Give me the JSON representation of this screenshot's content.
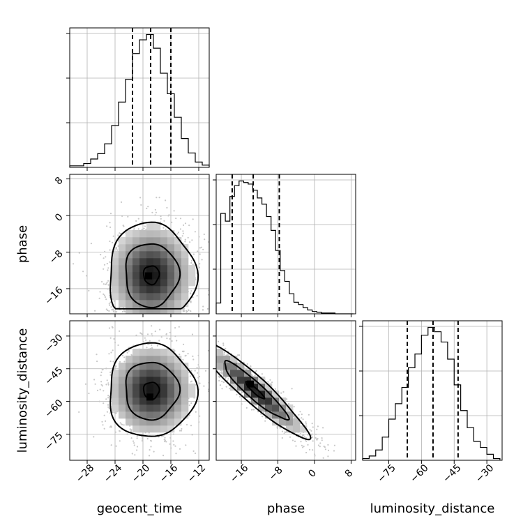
{
  "chart_data": {
    "type": "scatter",
    "title": "",
    "parameters": [
      "geocent_time",
      "phase",
      "luminosity_distance"
    ],
    "axis_labels": {
      "x": [
        "geocent_time",
        "phase",
        "luminosity_distance"
      ],
      "y": [
        "phase",
        "luminosity_distance"
      ]
    },
    "ranges": {
      "geocent_time": [
        -30.5,
        -10.5
      ],
      "phase": [
        -21.5,
        9
      ],
      "luminosity_distance": [
        -87,
        -23
      ]
    },
    "ticks": {
      "geocent_time": [
        -28,
        -24,
        -20,
        -16,
        -12
      ],
      "phase": [
        -16,
        -8,
        0,
        8
      ],
      "luminosity_distance": [
        -75,
        -60,
        -45,
        -30
      ]
    },
    "grid": true,
    "marginals": {
      "geocent_time": {
        "bin_edges": [
          -30.5,
          -29.5,
          -28.5,
          -27.5,
          -26.5,
          -25.5,
          -24.5,
          -23.5,
          -22.5,
          -21.5,
          -20.5,
          -19.5,
          -18.5,
          -17.5,
          -16.5,
          -15.5,
          -14.5,
          -13.5,
          -12.5,
          -11.5,
          -10.5
        ],
        "counts": [
          2,
          2,
          5,
          11,
          18,
          31,
          55,
          86,
          116,
          150,
          168,
          175,
          157,
          124,
          97,
          66,
          38,
          19,
          7,
          3
        ],
        "quantiles": [
          -21.5,
          -18.9,
          -16.0
        ]
      },
      "phase": {
        "bin_edges": [
          -21.5,
          -20.5,
          -19.5,
          -18.5,
          -17.5,
          -16.5,
          -15.5,
          -14.5,
          -13.5,
          -12.5,
          -11.5,
          -10.5,
          -9.5,
          -8.5,
          -7.5,
          -6.5,
          -5.5,
          -4.5,
          -3.5,
          -2.5,
          -1.5,
          -0.5,
          0.5,
          1.5,
          2.5,
          3.5,
          4.5,
          5.5,
          6.5,
          7.5,
          8.5
        ],
        "counts": [
          14,
          130,
          120,
          152,
          166,
          172,
          170,
          168,
          160,
          150,
          142,
          126,
          108,
          82,
          56,
          42,
          26,
          15,
          12,
          8,
          5,
          3,
          2,
          1,
          1,
          1,
          0,
          0,
          0,
          0
        ],
        "quantiles": [
          -18.0,
          -13.4,
          -7.7
        ]
      },
      "luminosity_distance": {
        "bin_edges": [
          -87,
          -84,
          -81,
          -78,
          -75,
          -72,
          -69,
          -66,
          -63,
          -60,
          -57,
          -54,
          -51,
          -48,
          -45,
          -42,
          -39,
          -36,
          -33,
          -30,
          -27,
          -24
        ],
        "counts": [
          2,
          5,
          12,
          27,
          48,
          66,
          85,
          108,
          124,
          146,
          155,
          150,
          138,
          118,
          88,
          58,
          38,
          22,
          15,
          7,
          2
        ],
        "quantiles": [
          -66.5,
          -54.7,
          -43.2
        ]
      }
    },
    "pairs": [
      {
        "x": "geocent_time",
        "y": "phase",
        "mean": [
          -18.8,
          -13.0
        ],
        "sd": [
          3.2,
          5.8
        ],
        "corr": 0.0,
        "bounds_y": [
          -21.2,
          9
        ],
        "density_peak": [
          -19.2,
          -13.2
        ],
        "contour_levels": [
          "inner",
          "middle",
          "outer"
        ]
      },
      {
        "x": "geocent_time",
        "y": "luminosity_distance",
        "mean": [
          -18.8,
          -55.0
        ],
        "sd": [
          3.2,
          11.0
        ],
        "corr": 0.0,
        "density_peak": [
          -19.0,
          -58.0
        ],
        "contour_levels": [
          "inner",
          "middle",
          "outer"
        ]
      },
      {
        "x": "phase",
        "y": "luminosity_distance",
        "mean": [
          -13.0,
          -55.0
        ],
        "sd": [
          5.8,
          11.0
        ],
        "corr": -0.93,
        "density_peak": [
          -14.0,
          -52.0
        ],
        "contour_levels": [
          "inner",
          "middle",
          "outer"
        ]
      }
    ]
  }
}
